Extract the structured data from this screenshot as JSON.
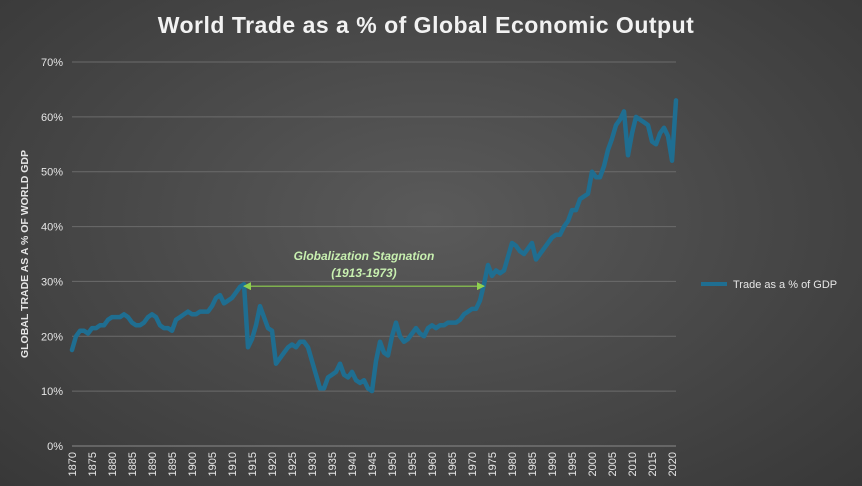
{
  "chart_data": {
    "type": "line",
    "title": "World Trade as a % of Global Economic Output",
    "ylabel": "GLOBAL TRADE AS A % OF WORLD GDP",
    "xlabel": "",
    "xlim": [
      1870,
      2021
    ],
    "ylim": [
      0,
      70
    ],
    "y_ticks": [
      "0%",
      "10%",
      "20%",
      "30%",
      "40%",
      "50%",
      "60%",
      "70%"
    ],
    "x_ticks": [
      "1870",
      "1875",
      "1880",
      "1885",
      "1890",
      "1895",
      "1900",
      "1905",
      "1910",
      "1915",
      "1920",
      "1925",
      "1930",
      "1935",
      "1940",
      "1945",
      "1950",
      "1955",
      "1960",
      "1965",
      "1970",
      "1975",
      "1980",
      "1985",
      "1990",
      "1995",
      "2000",
      "2005",
      "2010",
      "2015",
      "2020"
    ],
    "grid": true,
    "legend_position": "right",
    "series": [
      {
        "name": "Trade as a % of GDP",
        "color": "#1f6e91",
        "points": [
          [
            1870,
            17.5
          ],
          [
            1871,
            20.0
          ],
          [
            1872,
            21.0
          ],
          [
            1873,
            21.0
          ],
          [
            1874,
            20.5
          ],
          [
            1875,
            21.5
          ],
          [
            1876,
            21.5
          ],
          [
            1877,
            22.0
          ],
          [
            1878,
            22.0
          ],
          [
            1879,
            23.0
          ],
          [
            1880,
            23.5
          ],
          [
            1881,
            23.5
          ],
          [
            1882,
            23.5
          ],
          [
            1883,
            24.0
          ],
          [
            1884,
            23.5
          ],
          [
            1885,
            22.5
          ],
          [
            1886,
            22.0
          ],
          [
            1887,
            22.0
          ],
          [
            1888,
            22.5
          ],
          [
            1889,
            23.5
          ],
          [
            1890,
            24.0
          ],
          [
            1891,
            23.5
          ],
          [
            1892,
            22.0
          ],
          [
            1893,
            21.5
          ],
          [
            1894,
            21.5
          ],
          [
            1895,
            21.0
          ],
          [
            1896,
            23.0
          ],
          [
            1897,
            23.5
          ],
          [
            1898,
            24.0
          ],
          [
            1899,
            24.5
          ],
          [
            1900,
            24.0
          ],
          [
            1901,
            24.0
          ],
          [
            1902,
            24.5
          ],
          [
            1903,
            24.5
          ],
          [
            1904,
            24.5
          ],
          [
            1905,
            25.5
          ],
          [
            1906,
            27.0
          ],
          [
            1907,
            27.5
          ],
          [
            1908,
            26.0
          ],
          [
            1909,
            26.5
          ],
          [
            1910,
            27.0
          ],
          [
            1911,
            28.0
          ],
          [
            1912,
            29.0
          ],
          [
            1913,
            29.5
          ],
          [
            1914,
            18.0
          ],
          [
            1915,
            19.5
          ],
          [
            1916,
            22.0
          ],
          [
            1917,
            25.5
          ],
          [
            1918,
            23.5
          ],
          [
            1919,
            21.5
          ],
          [
            1920,
            21.0
          ],
          [
            1921,
            15.0
          ],
          [
            1922,
            16.0
          ],
          [
            1923,
            17.0
          ],
          [
            1924,
            18.0
          ],
          [
            1925,
            18.5
          ],
          [
            1926,
            18.0
          ],
          [
            1927,
            19.0
          ],
          [
            1928,
            19.0
          ],
          [
            1929,
            18.0
          ],
          [
            1930,
            15.5
          ],
          [
            1931,
            13.0
          ],
          [
            1932,
            10.5
          ],
          [
            1933,
            10.5
          ],
          [
            1934,
            12.5
          ],
          [
            1935,
            13.0
          ],
          [
            1936,
            13.5
          ],
          [
            1937,
            15.0
          ],
          [
            1938,
            13.0
          ],
          [
            1939,
            12.5
          ],
          [
            1940,
            13.5
          ],
          [
            1941,
            12.0
          ],
          [
            1942,
            11.5
          ],
          [
            1943,
            12.0
          ],
          [
            1944,
            10.5
          ],
          [
            1945,
            10.0
          ],
          [
            1946,
            15.5
          ],
          [
            1947,
            19.0
          ],
          [
            1948,
            17.0
          ],
          [
            1949,
            16.5
          ],
          [
            1950,
            20.0
          ],
          [
            1951,
            22.5
          ],
          [
            1952,
            20.0
          ],
          [
            1953,
            19.0
          ],
          [
            1954,
            19.5
          ],
          [
            1955,
            20.5
          ],
          [
            1956,
            21.5
          ],
          [
            1957,
            20.5
          ],
          [
            1958,
            20.0
          ],
          [
            1959,
            21.5
          ],
          [
            1960,
            22.0
          ],
          [
            1961,
            21.5
          ],
          [
            1962,
            22.0
          ],
          [
            1963,
            22.0
          ],
          [
            1964,
            22.5
          ],
          [
            1965,
            22.5
          ],
          [
            1966,
            22.5
          ],
          [
            1967,
            23.0
          ],
          [
            1968,
            24.0
          ],
          [
            1969,
            24.5
          ],
          [
            1970,
            25.0
          ],
          [
            1971,
            25.0
          ],
          [
            1972,
            26.5
          ],
          [
            1973,
            29.5
          ],
          [
            1974,
            33.0
          ],
          [
            1975,
            31.0
          ],
          [
            1976,
            32.0
          ],
          [
            1977,
            31.5
          ],
          [
            1978,
            32.0
          ],
          [
            1979,
            34.5
          ],
          [
            1980,
            37.0
          ],
          [
            1981,
            36.5
          ],
          [
            1982,
            35.5
          ],
          [
            1983,
            35.0
          ],
          [
            1984,
            36.0
          ],
          [
            1985,
            37.0
          ],
          [
            1986,
            34.0
          ],
          [
            1987,
            35.0
          ],
          [
            1988,
            36.0
          ],
          [
            1989,
            37.0
          ],
          [
            1990,
            38.0
          ],
          [
            1991,
            38.5
          ],
          [
            1992,
            38.5
          ],
          [
            1993,
            40.0
          ],
          [
            1994,
            41.0
          ],
          [
            1995,
            43.0
          ],
          [
            1996,
            43.0
          ],
          [
            1997,
            45.0
          ],
          [
            1998,
            45.5
          ],
          [
            1999,
            46.0
          ],
          [
            2000,
            50.0
          ],
          [
            2001,
            49.0
          ],
          [
            2002,
            49.0
          ],
          [
            2003,
            51.0
          ],
          [
            2004,
            54.0
          ],
          [
            2005,
            56.0
          ],
          [
            2006,
            58.5
          ],
          [
            2007,
            59.5
          ],
          [
            2008,
            61.0
          ],
          [
            2009,
            53.0
          ],
          [
            2010,
            57.0
          ],
          [
            2011,
            60.0
          ],
          [
            2012,
            59.5
          ],
          [
            2013,
            59.0
          ],
          [
            2014,
            58.5
          ],
          [
            2015,
            55.5
          ],
          [
            2016,
            55.0
          ],
          [
            2017,
            57.0
          ],
          [
            2018,
            58.0
          ],
          [
            2019,
            56.5
          ],
          [
            2020,
            52.0
          ],
          [
            2021,
            63.0
          ]
        ]
      }
    ],
    "annotations": [
      {
        "line1": "Globalization Stagnation",
        "line2": "(1913-1973)",
        "from_x": 1913,
        "to_x": 1973,
        "y": 29.5,
        "color": "#8fd14f"
      }
    ]
  }
}
